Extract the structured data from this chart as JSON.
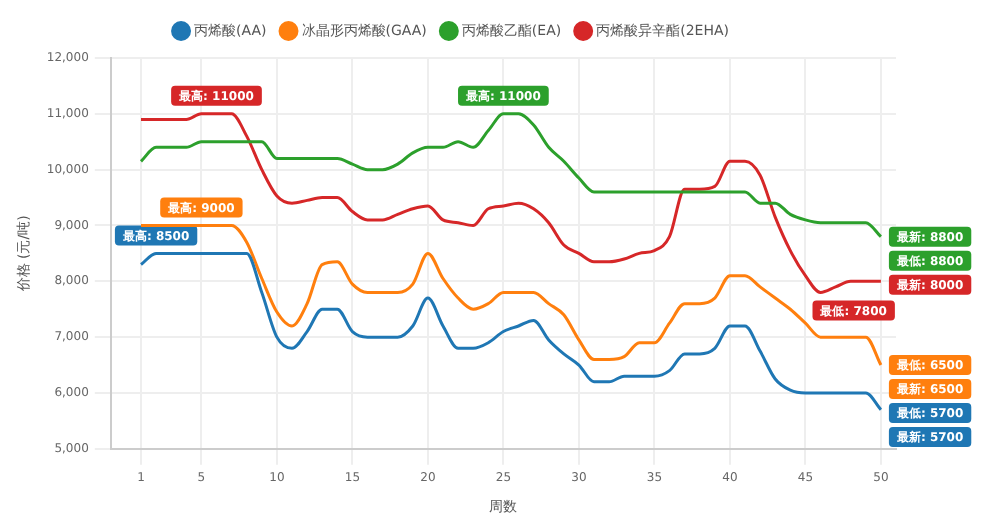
{
  "chart_data": {
    "type": "line",
    "xlabel": "周数",
    "ylabel": "价格 (元/吨)",
    "x": [
      1,
      2,
      3,
      4,
      5,
      6,
      7,
      8,
      9,
      10,
      11,
      12,
      13,
      14,
      15,
      16,
      17,
      18,
      19,
      20,
      21,
      22,
      23,
      24,
      25,
      26,
      27,
      28,
      29,
      30,
      31,
      32,
      33,
      34,
      35,
      36,
      37,
      38,
      39,
      40,
      41,
      42,
      43,
      44,
      45,
      46,
      47,
      48,
      49,
      50
    ],
    "series": [
      {
        "name": "丙烯酸(AA)",
        "color": "#1f77b4",
        "values": [
          8300,
          8500,
          8500,
          8500,
          8500,
          8500,
          8500,
          8500,
          7800,
          7000,
          6800,
          7100,
          7500,
          7500,
          7100,
          7000,
          7000,
          7000,
          7200,
          7700,
          7200,
          6800,
          6800,
          6900,
          7100,
          7200,
          7300,
          6950,
          6700,
          6500,
          6200,
          6200,
          6300,
          6300,
          6300,
          6400,
          6700,
          6700,
          6800,
          7200,
          7200,
          6750,
          6250,
          6050,
          6000,
          6000,
          6000,
          6000,
          6000,
          5700
        ]
      },
      {
        "name": "冰晶形丙烯酸(GAA)",
        "color": "#ff7f0e",
        "values": [
          9000,
          9000,
          9000,
          9000,
          9000,
          9000,
          9000,
          8700,
          8050,
          7450,
          7200,
          7600,
          8300,
          8350,
          7950,
          7800,
          7800,
          7800,
          7950,
          8500,
          8050,
          7700,
          7500,
          7600,
          7800,
          7800,
          7800,
          7600,
          7400,
          6950,
          6600,
          6600,
          6650,
          6900,
          6900,
          7250,
          7600,
          7600,
          7700,
          8100,
          8100,
          7900,
          7700,
          7500,
          7250,
          7000,
          7000,
          7000,
          7000,
          6500
        ]
      },
      {
        "name": "丙烯酸乙酯(EA)",
        "color": "#2ca02c",
        "values": [
          10150,
          10400,
          10400,
          10400,
          10500,
          10500,
          10500,
          10500,
          10500,
          10200,
          10200,
          10200,
          10200,
          10200,
          10100,
          10000,
          10000,
          10100,
          10300,
          10400,
          10400,
          10500,
          10400,
          10700,
          11000,
          11000,
          10800,
          10400,
          10150,
          9850,
          9600,
          9600,
          9600,
          9600,
          9600,
          9600,
          9600,
          9600,
          9600,
          9600,
          9600,
          9400,
          9400,
          9200,
          9100,
          9050,
          9050,
          9050,
          9050,
          8800
        ]
      },
      {
        "name": "丙烯酸异辛酯(2EHA)",
        "color": "#d62728",
        "values": [
          10900,
          10900,
          10900,
          10900,
          11000,
          11000,
          11000,
          10600,
          10000,
          9530,
          9400,
          9450,
          9500,
          9500,
          9250,
          9100,
          9100,
          9200,
          9300,
          9350,
          9100,
          9050,
          9000,
          9300,
          9350,
          9400,
          9300,
          9050,
          8650,
          8500,
          8350,
          8350,
          8400,
          8500,
          8550,
          8800,
          9650,
          9650,
          9700,
          10150,
          10150,
          9900,
          9150,
          8550,
          8100,
          7800,
          7900,
          8000,
          8000,
          8000
        ]
      }
    ],
    "xlim": [
      -1,
      51
    ],
    "xticks": [
      1,
      5,
      10,
      15,
      20,
      25,
      30,
      35,
      40,
      45,
      50
    ],
    "ylim": [
      5000,
      12000
    ],
    "yticks": [
      {
        "value": 5000,
        "label": "5,000"
      },
      {
        "value": 6000,
        "label": "6,000"
      },
      {
        "value": 7000,
        "label": "7,000"
      },
      {
        "value": 8000,
        "label": "8,000"
      },
      {
        "value": 9000,
        "label": "9,000"
      },
      {
        "value": 10000,
        "label": "10,000"
      },
      {
        "value": 11000,
        "label": "11,000"
      },
      {
        "value": 12000,
        "label": "12,000"
      }
    ],
    "annotations": [
      {
        "text": "最高: 11000",
        "x": 6,
        "y": 11000
      },
      {
        "text": "最高: 11000",
        "x": 25,
        "y": 11000
      },
      {
        "text": "最高: 9000",
        "x": 5,
        "y": 9000
      },
      {
        "text": "最高: 8500",
        "x": 2,
        "y": 8500
      },
      {
        "text": "最低: 7800",
        "x": 46,
        "y": 7800
      },
      {
        "text": "最新: 8800",
        "x": 50,
        "y": 8800
      },
      {
        "text": "最低: 8800",
        "x": 50,
        "y": 8800
      },
      {
        "text": "最新: 8000",
        "x": 50,
        "y": 8000
      },
      {
        "text": "最低: 6500",
        "x": 50,
        "y": 6500
      },
      {
        "text": "最新: 6500",
        "x": 50,
        "y": 6500
      },
      {
        "text": "最低: 5700",
        "x": 50,
        "y": 5700
      },
      {
        "text": "最新: 5700",
        "x": 50,
        "y": 5700
      }
    ],
    "grid": true,
    "legend": "top",
    "marker": "none",
    "line_style": "solid"
  }
}
